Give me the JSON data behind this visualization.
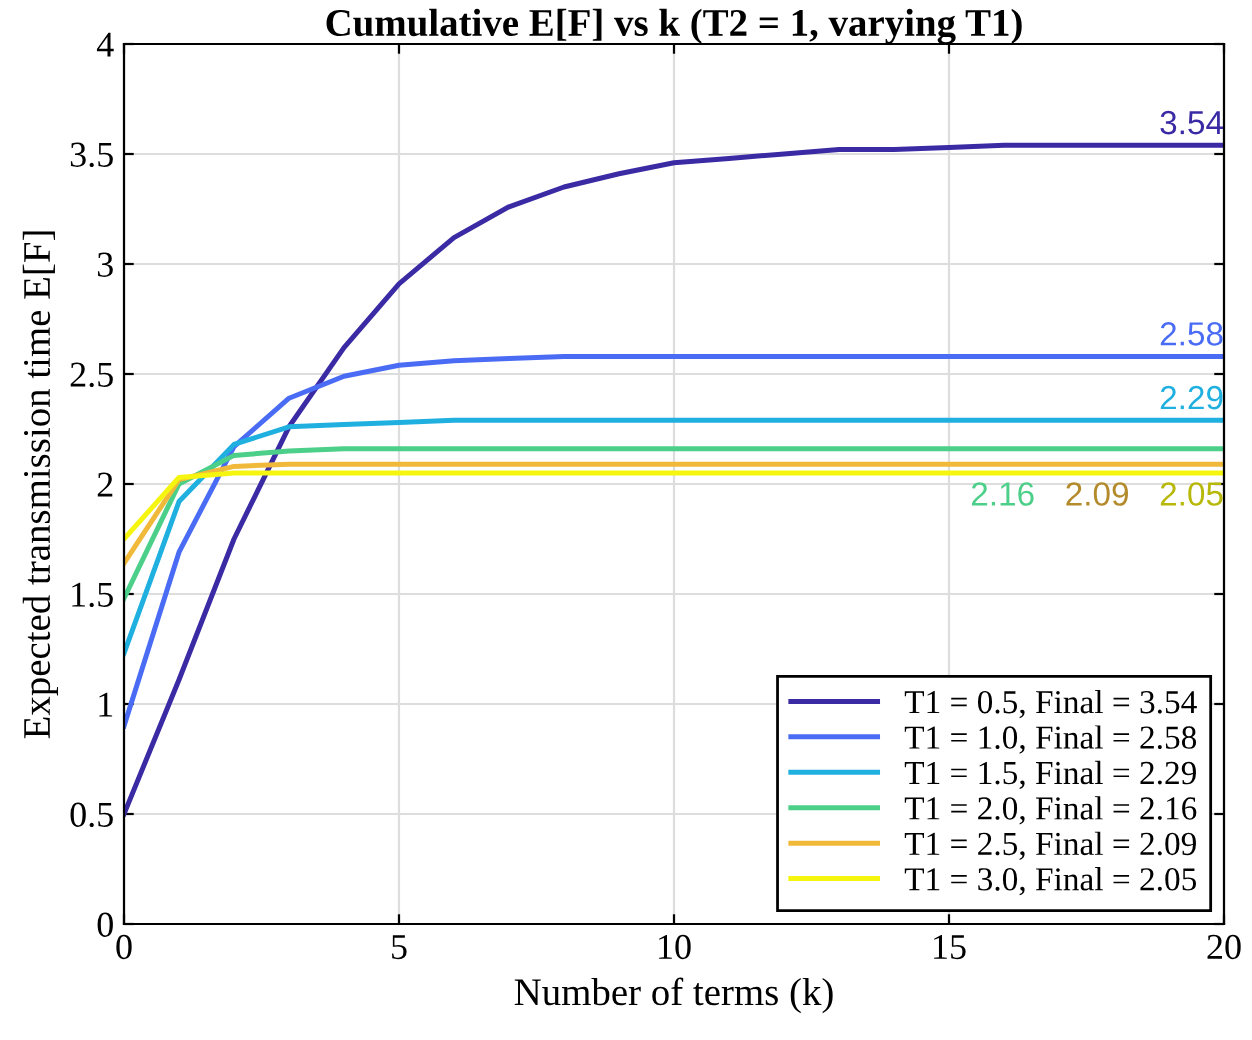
{
  "chart_data": {
    "type": "line",
    "title": "Cumulative E[F] vs k (T2 = 1, varying T1)",
    "xlabel": "Number of terms (k)",
    "ylabel": "Expected transmission time E[F]",
    "x": [
      0,
      1,
      2,
      3,
      4,
      5,
      6,
      7,
      8,
      9,
      10,
      11,
      12,
      13,
      14,
      15,
      16,
      17,
      18,
      19,
      20
    ],
    "series": [
      {
        "name": "T1 = 0.5, Final = 3.54",
        "color": "#3a2ba5",
        "values": [
          0.5,
          1.11,
          1.75,
          2.26,
          2.62,
          2.91,
          3.12,
          3.26,
          3.35,
          3.41,
          3.46,
          3.48,
          3.5,
          3.52,
          3.52,
          3.53,
          3.54,
          3.54,
          3.54,
          3.54,
          3.54
        ]
      },
      {
        "name": "T1 = 1.0, Final = 2.58",
        "color": "#4a6cf5",
        "values": [
          0.9,
          1.69,
          2.17,
          2.39,
          2.49,
          2.54,
          2.56,
          2.57,
          2.58,
          2.58,
          2.58,
          2.58,
          2.58,
          2.58,
          2.58,
          2.58,
          2.58,
          2.58,
          2.58,
          2.58,
          2.58
        ]
      },
      {
        "name": "T1 = 1.5, Final = 2.29",
        "color": "#1fb0e0",
        "values": [
          1.23,
          1.92,
          2.18,
          2.26,
          2.27,
          2.28,
          2.29,
          2.29,
          2.29,
          2.29,
          2.29,
          2.29,
          2.29,
          2.29,
          2.29,
          2.29,
          2.29,
          2.29,
          2.29,
          2.29,
          2.29
        ]
      },
      {
        "name": "T1 = 2.0, Final = 2.16",
        "color": "#4ccf88",
        "values": [
          1.48,
          2.0,
          2.13,
          2.15,
          2.16,
          2.16,
          2.16,
          2.16,
          2.16,
          2.16,
          2.16,
          2.16,
          2.16,
          2.16,
          2.16,
          2.16,
          2.16,
          2.16,
          2.16,
          2.16,
          2.16
        ]
      },
      {
        "name": "T1 = 2.5, Final = 2.09",
        "color": "#f0b93a",
        "values": [
          1.64,
          2.02,
          2.08,
          2.09,
          2.09,
          2.09,
          2.09,
          2.09,
          2.09,
          2.09,
          2.09,
          2.09,
          2.09,
          2.09,
          2.09,
          2.09,
          2.09,
          2.09,
          2.09,
          2.09,
          2.09
        ]
      },
      {
        "name": "T1 = 3.0, Final = 2.05",
        "color": "#f5f50f",
        "values": [
          1.75,
          2.03,
          2.05,
          2.05,
          2.05,
          2.05,
          2.05,
          2.05,
          2.05,
          2.05,
          2.05,
          2.05,
          2.05,
          2.05,
          2.05,
          2.05,
          2.05,
          2.05,
          2.05,
          2.05,
          2.05
        ]
      }
    ],
    "annotations": [
      "3.54",
      "2.58",
      "2.29",
      "2.16",
      "2.09",
      "2.05"
    ],
    "xlim": [
      0,
      20
    ],
    "xticks": [
      0,
      5,
      10,
      15,
      20
    ],
    "ylim": [
      0,
      4
    ],
    "yticks": [
      0,
      0.5,
      1,
      1.5,
      2,
      2.5,
      3,
      3.5,
      4
    ],
    "grid": true,
    "legend": "bottom right",
    "line_style": "solid",
    "marker": "none"
  }
}
